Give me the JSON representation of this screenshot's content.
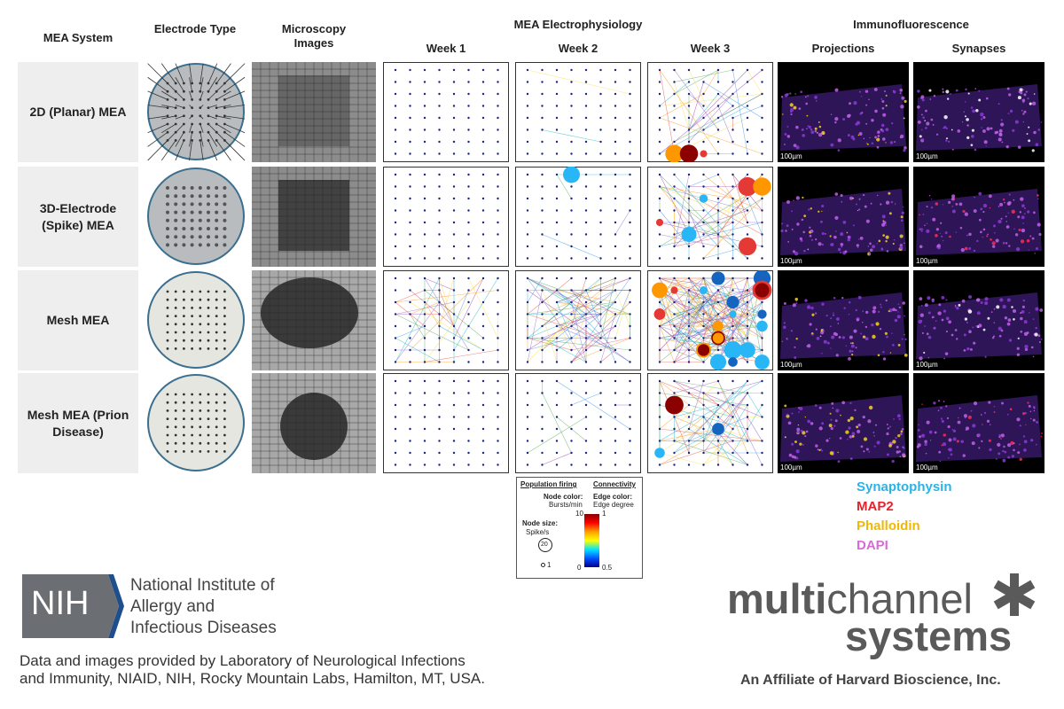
{
  "header": {
    "col_system": "MEA System",
    "col_electrode": "Electrode Type",
    "col_microscopy": "Microscopy Images",
    "ephys_title": "MEA Electrophysiology",
    "weeks": [
      "Week 1",
      "Week 2",
      "Week 3"
    ],
    "if_title": "Immunofluorescence",
    "if_cols": [
      "Projections",
      "Synapses"
    ]
  },
  "rows": [
    "2D (Planar) MEA",
    "3D-Electrode (Spike) MEA",
    "Mesh MEA",
    "Mesh MEA (Prion Disease)"
  ],
  "scale_bar": "100µm",
  "legend": {
    "population_firing": "Population firing",
    "connectivity": "Connectivity",
    "node_color_label": "Node color:",
    "node_color_unit": "Bursts/min",
    "edge_color_label": "Edge color:",
    "edge_color_unit": "Edge degree",
    "node_size_label": "Node size:",
    "node_size_unit": "Spike/s",
    "node_size_large": "20",
    "node_size_small": "1",
    "colorbar_top_left": "10",
    "colorbar_bottom_left": "0",
    "colorbar_top_right": "1",
    "colorbar_bottom_right": "0.5"
  },
  "stains": [
    {
      "name": "Synaptophysin",
      "color": "#29b3e6"
    },
    {
      "name": "MAP2",
      "color": "#e8212b"
    },
    {
      "name": "Phalloidin",
      "color": "#f2b705"
    },
    {
      "name": "DAPI",
      "color": "#d76ad8"
    }
  ],
  "nih": {
    "abbr": "NIH",
    "name_lines": [
      "National Institute of",
      "Allergy and",
      "Infectious Diseases"
    ]
  },
  "credit": [
    "Data and images provided by Laboratory of Neurological Infections",
    "and Immunity, NIAID, NIH, Rocky Mountain Labs, Hamilton, MT, USA."
  ],
  "mcs": {
    "multi": "multi",
    "channel": "channel",
    "systems": "systems",
    "affiliate": "An Affiliate of Harvard Bioscience, Inc."
  }
}
